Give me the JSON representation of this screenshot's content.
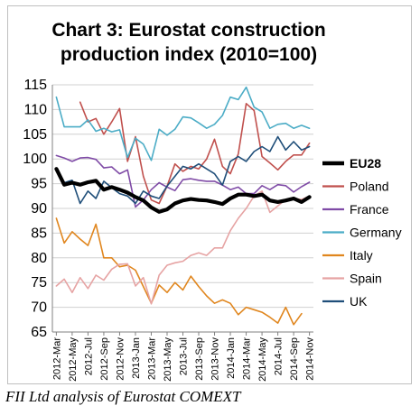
{
  "caption": "FII Ltd analysis of Eurostat COMEXT",
  "chart_data": {
    "type": "line",
    "title_lines": [
      "Chart 3: Eurostat construction",
      "production index (2010=100)"
    ],
    "xlabel": "",
    "ylabel": "",
    "ylim": [
      65,
      115
    ],
    "yticks": [
      65,
      70,
      75,
      80,
      85,
      90,
      95,
      100,
      105,
      110,
      115
    ],
    "grid": "horizontal",
    "legend_position": "right",
    "x_labels": [
      "2012-Mar",
      "2012-May",
      "2012-Jul",
      "2012-Sep",
      "2012-Nov",
      "2013-Jan",
      "2013-Mar",
      "2013-May",
      "2013-Jul",
      "2013-Sep",
      "2013-Nov",
      "2014-Jan",
      "2014-Mar",
      "2014-May",
      "2014-Jul",
      "2014-Sep",
      "2014-Nov"
    ],
    "x": [
      "2012-Mar",
      "2012-Apr",
      "2012-May",
      "2012-Jun",
      "2012-Jul",
      "2012-Aug",
      "2012-Sep",
      "2012-Oct",
      "2012-Nov",
      "2012-Dec",
      "2013-Jan",
      "2013-Feb",
      "2013-Mar",
      "2013-Apr",
      "2013-May",
      "2013-Jun",
      "2013-Jul",
      "2013-Aug",
      "2013-Sep",
      "2013-Oct",
      "2013-Nov",
      "2013-Dec",
      "2014-Jan",
      "2014-Feb",
      "2014-Mar",
      "2014-Apr",
      "2014-May",
      "2014-Jun",
      "2014-Jul",
      "2014-Aug",
      "2014-Sep",
      "2014-Oct",
      "2014-Nov"
    ],
    "series": [
      {
        "name": "EU28",
        "color": "#000000",
        "width": 4.2,
        "values": [
          98,
          94.8,
          95.2,
          94.8,
          95.3,
          95.6,
          93.8,
          94.3,
          93.8,
          93.2,
          92.3,
          91.6,
          90.2,
          89.3,
          89.8,
          91.0,
          91.6,
          91.9,
          91.7,
          91.6,
          91.3,
          90.9,
          92.0,
          92.8,
          92.8,
          92.5,
          92.8,
          91.6,
          91.3,
          91.6,
          92.0,
          91.3,
          92.3
        ]
      },
      {
        "name": "Poland",
        "color": "#c0504d",
        "width": 1.6,
        "values": [
          null,
          null,
          null,
          111.5,
          107.5,
          108.2,
          105.0,
          107.5,
          110.2,
          99.5,
          104.5,
          96.5,
          91.7,
          91.0,
          94.5,
          99.0,
          97.5,
          98.5,
          98.0,
          100.0,
          104.0,
          98.5,
          97.0,
          101.0,
          111.2,
          109.8,
          100.5,
          99.2,
          97.8,
          99.5,
          100.8,
          100.8,
          103.2
        ]
      },
      {
        "name": "France",
        "color": "#7f4ba6",
        "width": 1.6,
        "values": [
          100.7,
          100.2,
          99.5,
          100.2,
          100.3,
          99.9,
          98.2,
          98.4,
          97.0,
          97.8,
          90.3,
          91.7,
          93.8,
          95.2,
          94.3,
          93.6,
          95.8,
          96.0,
          95.7,
          95.5,
          95.5,
          94.7,
          93.8,
          94.3,
          93.0,
          93.0,
          94.6,
          93.8,
          94.8,
          94.6,
          93.3,
          94.4,
          95.3
        ]
      },
      {
        "name": "Germany",
        "color": "#4bacc6",
        "width": 1.6,
        "values": [
          112.5,
          106.5,
          106.5,
          106.5,
          107.9,
          105.6,
          106.2,
          105.5,
          105.9,
          100.3,
          104.2,
          103.0,
          99.7,
          106.0,
          104.8,
          106.0,
          108.5,
          108.3,
          107.3,
          106.2,
          107.0,
          108.8,
          112.5,
          112.0,
          114.5,
          110.5,
          109.5,
          106.2,
          107.0,
          107.2,
          106.2,
          106.8,
          106.2
        ]
      },
      {
        "name": "Italy",
        "color": "#e0861e",
        "width": 1.6,
        "values": [
          88.0,
          83.0,
          85.3,
          83.8,
          82.5,
          86.8,
          80.0,
          80.0,
          78.2,
          78.5,
          77.5,
          74.2,
          70.8,
          74.5,
          73.0,
          75.0,
          73.5,
          76.3,
          74.2,
          72.3,
          70.8,
          71.5,
          70.8,
          68.5,
          70.0,
          69.5,
          69.0,
          68.0,
          66.8,
          70.0,
          66.5,
          68.7,
          null
        ]
      },
      {
        "name": "Spain",
        "color": "#e6a3a3",
        "width": 1.6,
        "values": [
          74.3,
          75.7,
          73.0,
          76.0,
          73.8,
          76.5,
          75.5,
          77.7,
          78.7,
          78.8,
          74.3,
          76.0,
          70.7,
          76.5,
          78.5,
          79.0,
          79.3,
          80.5,
          81.0,
          80.5,
          82.0,
          82.0,
          85.5,
          88.0,
          90.0,
          92.5,
          93.5,
          89.2,
          90.5,
          91.8,
          92.0,
          91.8,
          92.5
        ]
      },
      {
        "name": "UK",
        "color": "#1f4e79",
        "width": 1.6,
        "values": [
          98.0,
          95.2,
          95.7,
          91.0,
          93.5,
          92.0,
          95.5,
          94.2,
          93.0,
          92.5,
          91.0,
          93.5,
          92.5,
          92.0,
          94.5,
          96.5,
          98.5,
          98.0,
          99.0,
          98.0,
          97.0,
          94.7,
          99.5,
          100.5,
          99.5,
          101.5,
          102.5,
          101.5,
          104.5,
          101.8,
          103.5,
          101.8,
          102.5
        ]
      }
    ]
  }
}
